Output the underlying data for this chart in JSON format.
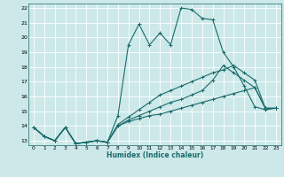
{
  "xlabel": "Humidex (Indice chaleur)",
  "bg_color": "#cce8e8",
  "grid_color": "#ffffff",
  "line_color": "#1a6b6b",
  "xlim": [
    -0.5,
    23.5
  ],
  "ylim": [
    12.7,
    22.3
  ],
  "xticks": [
    0,
    1,
    2,
    3,
    4,
    5,
    6,
    7,
    8,
    9,
    10,
    11,
    12,
    13,
    14,
    15,
    16,
    17,
    18,
    19,
    20,
    21,
    22,
    23
  ],
  "yticks": [
    13,
    14,
    15,
    16,
    17,
    18,
    19,
    20,
    21,
    22
  ],
  "series": [
    [
      13.9,
      13.3,
      13.0,
      13.9,
      12.8,
      12.9,
      13.0,
      12.9,
      14.7,
      19.5,
      20.9,
      19.5,
      20.3,
      19.5,
      22.0,
      21.9,
      21.3,
      21.2,
      19.0,
      18.0,
      16.7,
      15.3,
      15.1,
      15.2
    ],
    [
      13.9,
      13.3,
      13.0,
      13.9,
      12.8,
      12.9,
      13.0,
      12.9,
      14.0,
      14.3,
      14.5,
      14.7,
      14.8,
      15.0,
      15.2,
      15.4,
      15.6,
      15.8,
      16.0,
      16.2,
      16.4,
      16.6,
      15.2,
      15.2
    ],
    [
      13.9,
      13.3,
      13.0,
      13.9,
      12.8,
      12.9,
      13.0,
      12.9,
      14.0,
      14.4,
      14.7,
      15.0,
      15.3,
      15.6,
      15.8,
      16.1,
      16.4,
      17.1,
      18.1,
      17.6,
      17.1,
      16.6,
      15.2,
      15.2
    ],
    [
      13.9,
      13.3,
      13.0,
      13.9,
      12.8,
      12.9,
      13.0,
      12.9,
      14.1,
      14.6,
      15.1,
      15.6,
      16.1,
      16.4,
      16.7,
      17.0,
      17.3,
      17.6,
      17.8,
      18.1,
      17.6,
      17.1,
      15.2,
      15.2
    ]
  ]
}
